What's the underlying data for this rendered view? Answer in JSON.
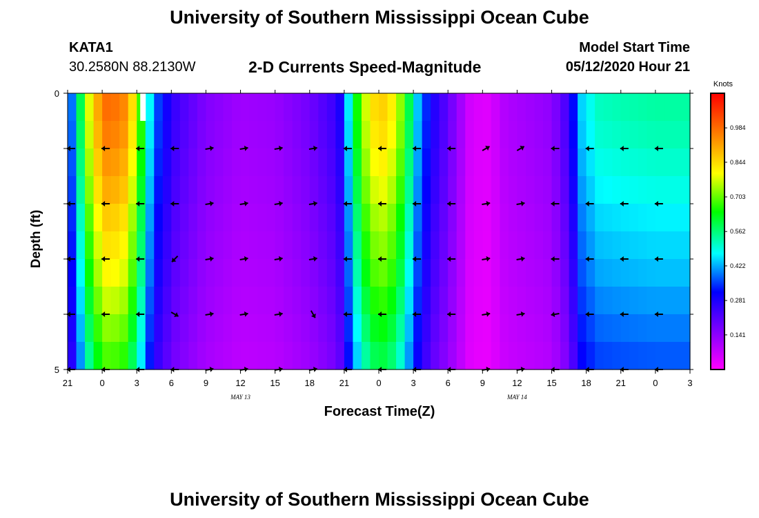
{
  "header": {
    "title": "University of Southern Mississippi Ocean Cube",
    "station": "KATA1",
    "coords": "30.2580N 88.2130W",
    "subtitle": "2-D Currents Speed-Magnitude",
    "model_start_label": "Model Start Time",
    "model_start_value": "05/12/2020 Hour 21"
  },
  "footer": {
    "title": "University of Southern Mississippi Ocean Cube"
  },
  "chart_data": {
    "type": "heatmap",
    "title": "2-D Currents Speed-Magnitude",
    "xlabel": "Forecast Time(Z)",
    "ylabel": "Depth (ft)",
    "x_tick_labels": [
      "21",
      "0",
      "3",
      "6",
      "9",
      "12",
      "15",
      "18",
      "21",
      "0",
      "3",
      "6",
      "9",
      "12",
      "15",
      "18",
      "21",
      "0",
      "3"
    ],
    "x_hours": [
      0,
      30
    ],
    "date_labels": [
      {
        "text": "MAY  13",
        "hour": 15
      },
      {
        "text": "MAY  14",
        "hour": 39
      }
    ],
    "y_tick_labels": [
      {
        "depth": 0,
        "label": "0"
      },
      {
        "depth": 1,
        "label": ""
      },
      {
        "depth": 2,
        "label": ""
      },
      {
        "depth": 3,
        "label": ""
      },
      {
        "depth": 4,
        "label": ""
      },
      {
        "depth": 5,
        "label": "5"
      }
    ],
    "depth_range": [
      0,
      5
    ],
    "colorbar": {
      "unit": "Knots",
      "min": 0.0,
      "max": 1.125,
      "tick_values": [
        0.141,
        0.281,
        0.422,
        0.562,
        0.703,
        0.844,
        0.984
      ],
      "tick_labels": [
        "0.141",
        "0.281",
        "0.422",
        "0.562",
        "0.703",
        "0.844",
        "0.984"
      ],
      "colors": [
        "#ff00ff",
        "#8000ff",
        "#0000ff",
        "#00ffff",
        "#00ff00",
        "#ffff00",
        "#ff8000",
        "#ff0000"
      ]
    },
    "speed_profile": [
      {
        "hour": 0.0,
        "speed": 0.3
      },
      {
        "hour": 1.0,
        "speed": 0.55
      },
      {
        "hour": 1.5,
        "speed": 0.72
      },
      {
        "hour": 2.5,
        "speed": 0.9
      },
      {
        "hour": 3.5,
        "speed": 1.0
      },
      {
        "hour": 5.0,
        "speed": 0.95
      },
      {
        "hour": 6.0,
        "speed": 0.78
      },
      {
        "hour": 7.0,
        "speed": 0.5
      },
      {
        "hour": 8.0,
        "speed": 0.34
      },
      {
        "hour": 9.5,
        "speed": 0.24
      },
      {
        "hour": 12.0,
        "speed": 0.16
      },
      {
        "hour": 15.0,
        "speed": 0.12
      },
      {
        "hour": 18.0,
        "speed": 0.13
      },
      {
        "hour": 21.0,
        "speed": 0.18
      },
      {
        "hour": 23.5,
        "speed": 0.26
      },
      {
        "hour": 24.5,
        "speed": 0.5
      },
      {
        "hour": 25.5,
        "speed": 0.74
      },
      {
        "hour": 27.0,
        "speed": 0.88
      },
      {
        "hour": 28.5,
        "speed": 0.8
      },
      {
        "hour": 29.5,
        "speed": 0.62
      },
      {
        "hour": 30.5,
        "speed": 0.42
      },
      {
        "hour": 31.5,
        "speed": 0.3
      },
      {
        "hour": 33.0,
        "speed": 0.2
      },
      {
        "hour": 35.0,
        "speed": 0.05
      },
      {
        "hour": 36.5,
        "speed": 0.04
      },
      {
        "hour": 38.0,
        "speed": 0.1
      },
      {
        "hour": 40.0,
        "speed": 0.12
      },
      {
        "hour": 42.0,
        "speed": 0.14
      },
      {
        "hour": 43.5,
        "speed": 0.25
      },
      {
        "hour": 44.5,
        "speed": 0.45
      },
      {
        "hour": 46.0,
        "speed": 0.52
      },
      {
        "hour": 48.0,
        "speed": 0.53
      },
      {
        "hour": 51.0,
        "speed": 0.54
      }
    ],
    "depth_layers": [
      {
        "depth": 0.25,
        "factor": 1.0
      },
      {
        "depth": 0.75,
        "factor": 0.98
      },
      {
        "depth": 1.25,
        "factor": 0.95
      },
      {
        "depth": 1.75,
        "factor": 0.92
      },
      {
        "depth": 2.25,
        "factor": 0.88
      },
      {
        "depth": 2.75,
        "factor": 0.85
      },
      {
        "depth": 3.25,
        "factor": 0.82
      },
      {
        "depth": 3.75,
        "factor": 0.78
      },
      {
        "depth": 4.25,
        "factor": 0.74
      },
      {
        "depth": 4.75,
        "factor": 0.7
      }
    ],
    "vectors": {
      "hours": [
        0,
        3,
        6,
        9,
        12,
        15,
        18,
        21,
        24,
        27,
        30,
        33,
        36,
        39,
        42,
        45,
        48,
        51
      ],
      "depths": [
        1,
        2,
        3,
        4,
        5
      ],
      "directions_deg": [
        [
          180,
          180,
          180,
          180,
          10,
          10,
          10,
          10,
          180,
          180,
          180,
          180,
          30,
          30,
          180,
          180,
          180,
          180
        ],
        [
          180,
          180,
          180,
          180,
          10,
          10,
          10,
          10,
          180,
          180,
          180,
          180,
          10,
          10,
          180,
          180,
          180,
          180
        ],
        [
          180,
          180,
          180,
          225,
          10,
          10,
          10,
          10,
          180,
          180,
          180,
          180,
          10,
          10,
          180,
          180,
          180,
          180
        ],
        [
          180,
          180,
          180,
          330,
          10,
          10,
          10,
          300,
          180,
          180,
          180,
          180,
          10,
          10,
          190,
          180,
          180,
          180
        ],
        [
          180,
          180,
          180,
          180,
          10,
          10,
          10,
          10,
          180,
          180,
          180,
          180,
          10,
          10,
          180,
          180,
          180,
          180
        ]
      ]
    }
  }
}
